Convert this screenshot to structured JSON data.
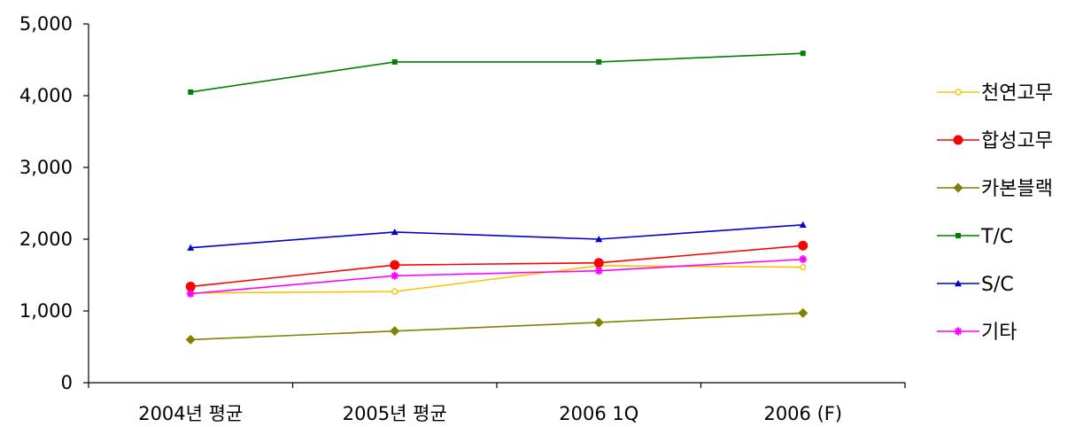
{
  "chart_data": {
    "type": "line",
    "title": "",
    "xlabel": "",
    "ylabel": "",
    "categories": [
      "2004년 평균",
      "2005년 평균",
      "2006 1Q",
      "2006 (F)"
    ],
    "ylim": [
      0,
      5000
    ],
    "yticks": [
      "0",
      "1,000",
      "2,000",
      "3,000",
      "4,000",
      "5,000"
    ],
    "ytick_values": [
      0,
      1000,
      2000,
      3000,
      4000,
      5000
    ],
    "grid": false,
    "legend": "right",
    "series": [
      {
        "name": "천연고무",
        "values": [
          1250,
          1270,
          1630,
          1610
        ],
        "color": "#FFC000",
        "marker": "circle-open"
      },
      {
        "name": "합성고무",
        "values": [
          1340,
          1640,
          1670,
          1910
        ],
        "color": "#FF0000",
        "marker": "circle"
      },
      {
        "name": "카본블랙",
        "values": [
          600,
          720,
          840,
          970
        ],
        "color": "#808000",
        "marker": "diamond"
      },
      {
        "name": "T/C",
        "values": [
          4050,
          4470,
          4470,
          4590
        ],
        "color": "#008000",
        "marker": "square"
      },
      {
        "name": "S/C",
        "values": [
          1880,
          2100,
          2000,
          2200
        ],
        "color": "#0000CC",
        "marker": "triangle"
      },
      {
        "name": "기타",
        "values": [
          1240,
          1490,
          1560,
          1720
        ],
        "color": "#FF00FF",
        "marker": "star"
      }
    ]
  }
}
